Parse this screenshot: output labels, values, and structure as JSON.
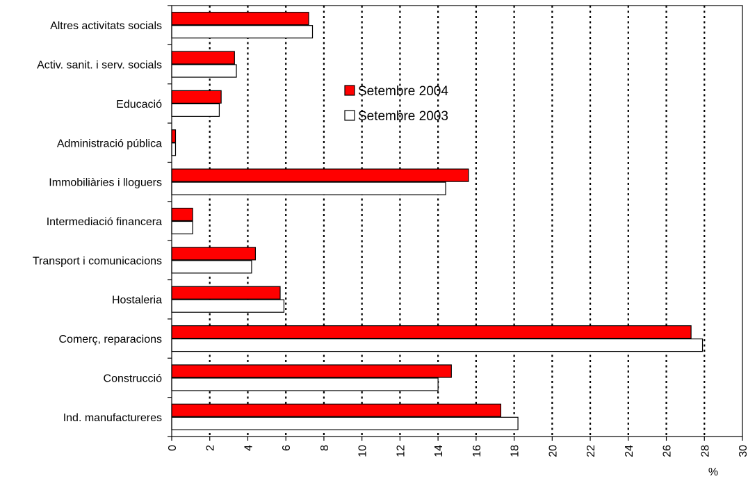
{
  "chart_data": {
    "type": "bar",
    "orientation": "horizontal",
    "categories": [
      "Altres activitats socials",
      "Activ. sanit. i serv. socials",
      "Educació",
      "Administració pública",
      "Immobiliàries i lloguers",
      "Intermediació financera",
      "Transport i comunicacions",
      "Hostaleria",
      "Comerç, reparacions",
      "Construcció",
      "Ind. manufactureres"
    ],
    "series": [
      {
        "name": "Setembre 2004",
        "color": "#ff0000",
        "values": [
          7.2,
          3.3,
          2.6,
          0.2,
          15.6,
          1.1,
          4.4,
          5.7,
          27.3,
          14.7,
          17.3
        ]
      },
      {
        "name": "Setembre 2003",
        "color": "#ffffff",
        "values": [
          7.4,
          3.4,
          2.5,
          0.2,
          14.4,
          1.1,
          4.2,
          5.9,
          27.9,
          14.0,
          18.2
        ]
      }
    ],
    "xlim": [
      0,
      30
    ],
    "xticks": [
      0,
      2,
      4,
      6,
      8,
      10,
      12,
      14,
      16,
      18,
      20,
      22,
      24,
      26,
      28,
      30
    ],
    "xlabel": "%",
    "grid": "vertical dotted",
    "legend_position": "inside, upper middle"
  }
}
